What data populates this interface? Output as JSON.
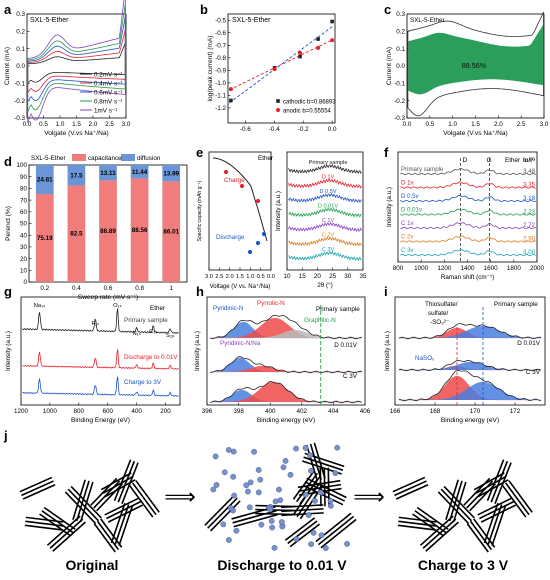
{
  "panel_letters": {
    "a": "a",
    "b": "b",
    "c": "c",
    "d": "d",
    "e": "e",
    "f": "f",
    "g": "g",
    "h": "h",
    "i": "i",
    "j": "j"
  },
  "colors": {
    "black": "#222222",
    "red": "#e8202a",
    "blue": "#1a56c8",
    "green": "#1e9e4a",
    "purple": "#8a3fbf",
    "orange": "#e07a1a",
    "teal": "#1aa3b0",
    "capacitance": "#f07c7c",
    "diffusion": "#6a95d6",
    "fill_green": "#2a9e5a",
    "blob_red": "#f04a4a",
    "blob_blue": "#4a7ee0",
    "blob_gray": "#bbbbbb",
    "ball": "#7a90c8"
  },
  "chart_data": [
    {
      "id": "a",
      "type": "line",
      "title": "SXL-5-Ether",
      "xlabel": "Volgate (V.vs Na⁺/Na)",
      "ylabel": "Current (mA)",
      "xlim": [
        0.0,
        3.0
      ],
      "ylim": [
        -0.3,
        0.3
      ],
      "xticks": [
        "0.0",
        "0.5",
        "1.0",
        "1.5",
        "2.0",
        "2.5",
        "3.0"
      ],
      "yticks": [
        "-0.3",
        "-0.2",
        "-0.1",
        "0.0",
        "0.1",
        "0.2",
        "0.3"
      ],
      "series": [
        {
          "name": "0.2mV s⁻¹",
          "color": "#222222",
          "half_width": 0.07
        },
        {
          "name": "0.4mV s⁻¹",
          "color": "#e8202a",
          "half_width": 0.11
        },
        {
          "name": "0.6mV s⁻¹",
          "color": "#1a56c8",
          "half_width": 0.15
        },
        {
          "name": "0.8mV s⁻¹",
          "color": "#1e9e4a",
          "half_width": 0.19
        },
        {
          "name": "1mV s⁻¹",
          "color": "#8a3fbf",
          "half_width": 0.235
        }
      ]
    },
    {
      "id": "b",
      "type": "scatter",
      "title": "SXL-5-Ether",
      "xlabel": "log(scan rate)",
      "ylabel": "log(peak current) (mA)",
      "xlim": [
        -0.72,
        0.02
      ],
      "ylim": [
        -1.32,
        -0.45
      ],
      "xticks": [
        "-0.6",
        "-0.4",
        "-0.2",
        "0.0"
      ],
      "xtick_values": [
        -0.6,
        -0.4,
        -0.2,
        0.0
      ],
      "yticks": [
        "-1.2",
        "-1.1",
        "-1.0",
        "-0.9",
        "-0.8",
        "-0.7",
        "-0.6",
        "-0.5"
      ],
      "ytick_values": [
        -1.2,
        -1.1,
        -1.0,
        -0.9,
        -0.8,
        -0.7,
        -0.6,
        -0.5
      ],
      "series": [
        {
          "name": "cathodic",
          "legend": "cathodic b=0.86893",
          "color": "#222222",
          "x": [
            -0.7,
            -0.398,
            -0.222,
            -0.097,
            0.0
          ],
          "y": [
            -1.14,
            -0.88,
            -0.79,
            -0.65,
            -0.51
          ]
        },
        {
          "name": "anodic",
          "legend": "anodic b=0.55554",
          "color": "#e8202a",
          "x": [
            -0.7,
            -0.398,
            -0.222,
            -0.097,
            0.0
          ],
          "y": [
            -1.05,
            -0.89,
            -0.76,
            -0.72,
            -0.66
          ]
        }
      ]
    },
    {
      "id": "c",
      "type": "area",
      "title": "SXL-5-Ether",
      "xlabel": "Volgate (V.vs Na⁺/Na)",
      "ylabel": "Current (mA)",
      "xlim": [
        0.0,
        3.0
      ],
      "ylim": [
        -0.3,
        0.3
      ],
      "xticks": [
        "0.0",
        "0.5",
        "1.0",
        "1.5",
        "2.0",
        "2.5",
        "3.0"
      ],
      "yticks": [
        "-0.3",
        "-0.2",
        "-0.1",
        "0.0",
        "0.1",
        "0.2",
        "0.3"
      ],
      "annotation": "88.56%"
    },
    {
      "id": "d",
      "type": "bar",
      "title": "SXL-5-Ether",
      "xlabel": "Sweep rate (mV s⁻¹)",
      "ylabel": "Perenct (%)",
      "categories": [
        "0.2",
        "0.4",
        "0.6",
        "0.8",
        "1"
      ],
      "ylim": [
        0,
        100
      ],
      "yticks": [
        "0",
        "10",
        "20",
        "30",
        "40",
        "50",
        "60",
        "70",
        "80",
        "90",
        "100"
      ],
      "series": [
        {
          "name": "capacitance",
          "values": [
            75.19,
            82.5,
            86.89,
            88.56,
            86.01
          ]
        },
        {
          "name": "diffusion",
          "values": [
            24.81,
            17.5,
            13.11,
            11.44,
            13.99
          ]
        }
      ]
    },
    {
      "id": "e_left",
      "type": "line",
      "title": "Ether",
      "xlabel": "Voltage (V vs. Na⁺/Na)",
      "ylabel": "Specific capacity (mAh g⁻¹)",
      "xticks": [
        "3.0",
        "2.5",
        "2.0",
        "1.5",
        "1.0",
        "0.5",
        "0.0"
      ],
      "labels": {
        "charge": "Charge",
        "discharge": "Discharge"
      }
    },
    {
      "id": "e_right",
      "type": "line",
      "title": "Primary sample",
      "xlabel": "2θ (°)",
      "ylabel": "Intensity (a.u.)",
      "xlim": [
        10,
        35
      ],
      "xticks": [
        "10",
        "15",
        "20",
        "25",
        "30",
        "35"
      ],
      "series": [
        {
          "name": "Primary sample",
          "color": "#222222"
        },
        {
          "name": "D 1V",
          "color": "#e8202a"
        },
        {
          "name": "D 0.5V",
          "color": "#1a56c8"
        },
        {
          "name": "D 0.01V",
          "color": "#1e9e4a"
        },
        {
          "name": "C 1V",
          "color": "#8a3fbf"
        },
        {
          "name": "C 2V",
          "color": "#e07a1a"
        },
        {
          "name": "C 3V",
          "color": "#1aa3b0"
        }
      ]
    },
    {
      "id": "f",
      "type": "line",
      "xlabel": "Raman shift (cm⁻¹)",
      "ylabel": "Intensity (a.u.)",
      "xlim": [
        800,
        2000
      ],
      "xticks": [
        "800",
        "1000",
        "1200",
        "1400",
        "1600",
        "1800",
        "2000"
      ],
      "peaks": {
        "D": "D",
        "G": "G"
      },
      "header": {
        "ether": "Ether",
        "ratio": "Iᴅ/Iᴳ"
      },
      "series": [
        {
          "name": "Primary sample",
          "ratio": "3.48",
          "color": "#555555"
        },
        {
          "name": "D 1v",
          "ratio": "3.35",
          "color": "#e8202a"
        },
        {
          "name": "D 0.5v",
          "ratio": "3.18",
          "color": "#1a56c8"
        },
        {
          "name": "D 0.01v",
          "ratio": "2.23",
          "color": "#1e9e4a"
        },
        {
          "name": "C 1v",
          "ratio": "2.72",
          "color": "#8a3fbf"
        },
        {
          "name": "C 2v",
          "ratio": "2.90",
          "color": "#e07a1a"
        },
        {
          "name": "C 3v",
          "ratio": "3.00",
          "color": "#1aa3b0"
        }
      ]
    },
    {
      "id": "g",
      "type": "line",
      "title": "Ether",
      "xlabel": "Binding Energy (eV)",
      "ylabel": "Intensity (a.u.)",
      "xlim": [
        1200,
        100
      ],
      "xticks": [
        "1200",
        "1000",
        "800",
        "600",
        "400",
        "200"
      ],
      "peaks": [
        "Na₁ₛ",
        "F₁ₛ",
        "O₁ₛ",
        "N₁ₛ",
        "C₁ₛ",
        "S₂ₚ"
      ],
      "series": [
        {
          "name": "Primary sample",
          "color": "#222222"
        },
        {
          "name": "Discharge to 0.01V",
          "color": "#e8202a"
        },
        {
          "name": "Charge to 3V",
          "color": "#1a56c8"
        }
      ]
    },
    {
      "id": "h",
      "type": "line",
      "xlabel": "Binding energy (eV)",
      "ylabel": "Intensity (a.u.)",
      "xlim": [
        396,
        406
      ],
      "xticks": [
        "396",
        "398",
        "400",
        "402",
        "404",
        "406"
      ],
      "labels": {
        "pyridinic": "Pyridinic-N",
        "pyrrolic": "Pyrrolic-N",
        "graphitic": "Graphitic-N",
        "pyridinic_na": "Pyridinic-N/Na",
        "primary": "Primary sample",
        "d001": "D 0.01V",
        "c3": "C 3V"
      }
    },
    {
      "id": "i",
      "type": "line",
      "xlabel": "Binding energy (eV)",
      "ylabel": "Intensity (a.u.)",
      "xlim": [
        166,
        173.5
      ],
      "xticks": [
        "166",
        "168",
        "170",
        "172"
      ],
      "labels": {
        "thio": "Thiosulfate/",
        "sulfate": "sulfate/",
        "so3": "-SO₃²⁻",
        "primary": "Primary sample",
        "d001": "D 0.01V",
        "c3": "C 3V",
        "naso": "NaSOₓ"
      }
    }
  ],
  "scheme": {
    "labels": {
      "original": "Original",
      "discharge": "Discharge to 0.01 V",
      "charge": "Charge to 3 V"
    },
    "arrow": "⟹"
  }
}
